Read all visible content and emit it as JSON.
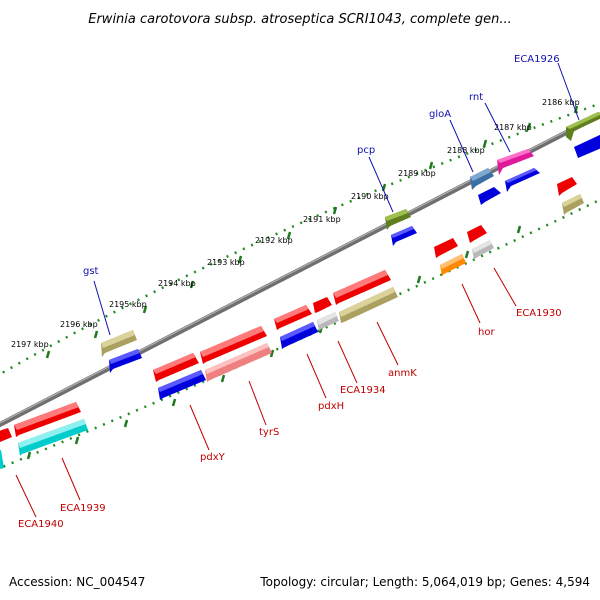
{
  "title": "Erwinia carotovora subsp. atroseptica SCRI1043, complete gen...",
  "accession": "Accession: NC_004547",
  "summary": "Topology: circular; Length: 5,064,019 bp; Genes: 4,594",
  "colors": {
    "backbone": "#808080",
    "ticks": "#228b22",
    "forward_label": "#1010b0",
    "reverse_label": "#c00000"
  },
  "kbp_labels": [
    "2186 kbp",
    "2187 kbp",
    "2188 kbp",
    "2189 kbp",
    "2190 kbp",
    "2191 kbp",
    "2192 kbp",
    "2193 kbp",
    "2194 kbp",
    "2195 kbp",
    "2196 kbp",
    "2197 kbp"
  ],
  "forward_gene_labels": [
    "ECA1926",
    "rnt",
    "gloA",
    "pcp",
    "gst"
  ],
  "reverse_gene_labels": [
    "ECA1930",
    "hor",
    "anmK",
    "ECA1934",
    "pdxH",
    "tyrS",
    "pdxY",
    "ECA1939",
    "ECA1940"
  ]
}
